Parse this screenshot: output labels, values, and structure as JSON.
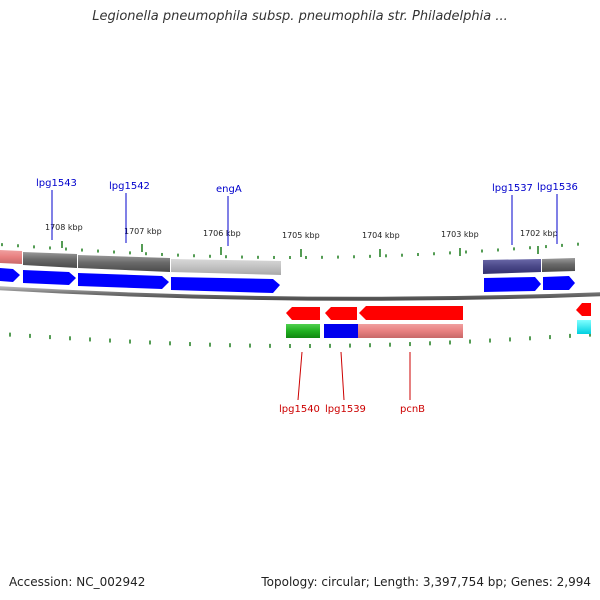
{
  "title": "Legionella pneumophila subsp. pneumophila str. Philadelphia ...",
  "footer": {
    "accession": "Accession: NC_002942",
    "summary": "Topology: circular; Length: 3,397,754 bp; Genes: 2,994"
  },
  "colors": {
    "forward_label": "#0000cc",
    "reverse_label": "#cc0000",
    "tick": "#1a7a1a",
    "forward_arrow": "#0000ff",
    "reverse_arrow": "#ff0000",
    "backbone": "#808080"
  },
  "ruler": {
    "ticks": [
      {
        "label": "1708 kbp"
      },
      {
        "label": "1707 kbp"
      },
      {
        "label": "1706 kbp"
      },
      {
        "label": "1705 kbp"
      },
      {
        "label": "1704 kbp"
      },
      {
        "label": "1703 kbp"
      },
      {
        "label": "1702 kbp"
      }
    ]
  },
  "genes": {
    "forward": [
      {
        "name": "lpg1543"
      },
      {
        "name": "lpg1542"
      },
      {
        "name": "engA"
      },
      {
        "name": "lpg1537"
      },
      {
        "name": "lpg1536"
      }
    ],
    "reverse": [
      {
        "name": "lpg1540"
      },
      {
        "name": "lpg1539"
      },
      {
        "name": "pcnB"
      }
    ]
  }
}
